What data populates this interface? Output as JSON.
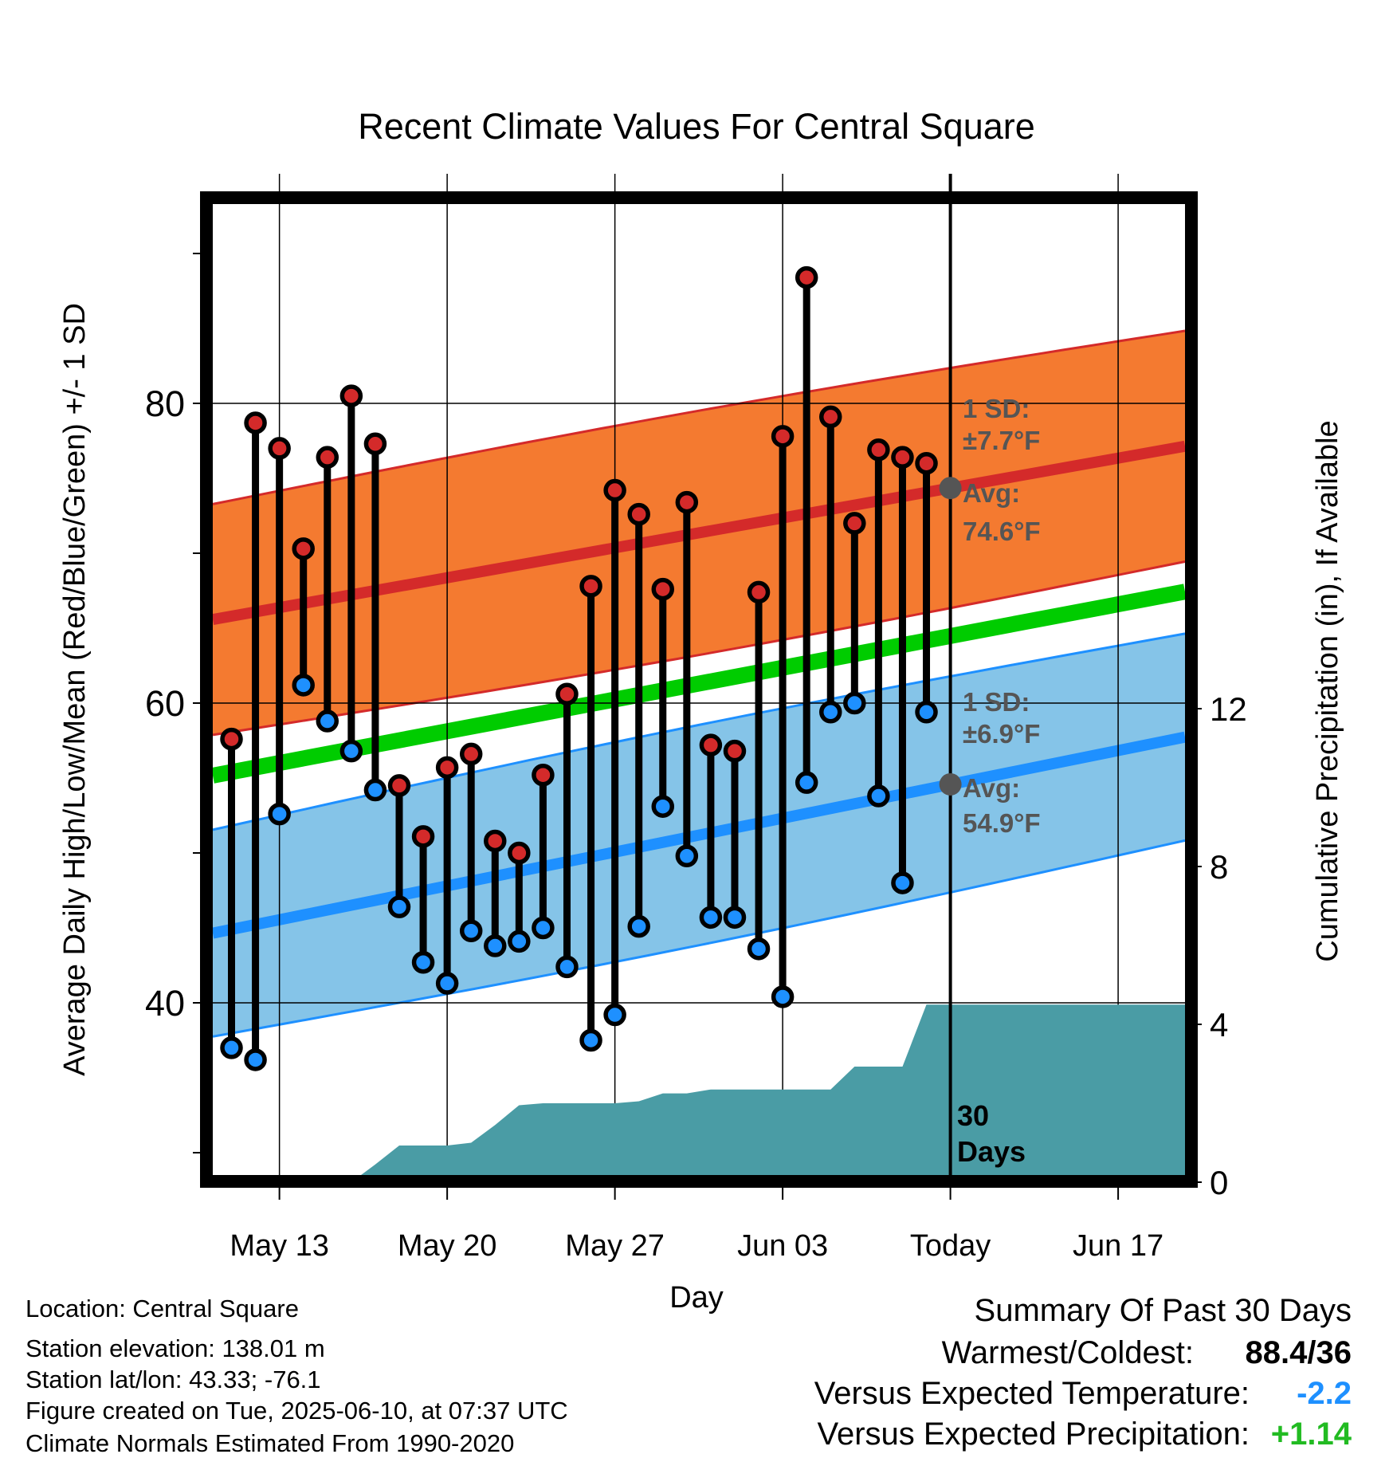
{
  "title": "Recent Climate Values For Central Square",
  "chart_data": {
    "type": "line",
    "title": "Recent Climate Values For Central Square",
    "xlabel": "Day",
    "ylabel": "Average Daily High/Low/Mean (Red/Blue/Green) +/- 1 SD",
    "y2label": "Cumulative Precipitation (in), If Available",
    "ylim": [
      30,
      95
    ],
    "y2lim": [
      0,
      20
    ],
    "y_ticks": [
      "40",
      "60",
      "80"
    ],
    "y2_ticks": [
      "0",
      "4",
      "8",
      "12"
    ],
    "x_tick_labels": [
      "May 13",
      "May 20",
      "May 27",
      "Jun 03",
      "Today",
      "Jun 17"
    ],
    "grid": true,
    "days": [
      "May 11",
      "May 12",
      "May 13",
      "May 14",
      "May 15",
      "May 16",
      "May 17",
      "May 18",
      "May 19",
      "May 20",
      "May 21",
      "May 22",
      "May 23",
      "May 24",
      "May 25",
      "May 26",
      "May 27",
      "May 28",
      "May 29",
      "May 30",
      "May 31",
      "Jun 01",
      "Jun 02",
      "Jun 03",
      "Jun 04",
      "Jun 05",
      "Jun 06",
      "Jun 07",
      "Jun 08",
      "Jun 09"
    ],
    "highs": [
      57.6,
      78.7,
      77.0,
      70.3,
      76.4,
      80.5,
      77.3,
      54.5,
      51.1,
      55.7,
      56.6,
      50.8,
      50.0,
      55.2,
      60.6,
      67.8,
      74.2,
      72.6,
      67.6,
      73.4,
      57.2,
      56.8,
      67.4,
      77.8,
      88.4,
      79.1,
      72.0,
      76.9,
      76.4,
      76.0
    ],
    "lows": [
      37.0,
      36.2,
      52.6,
      61.2,
      58.8,
      56.8,
      54.2,
      46.4,
      42.7,
      41.3,
      44.8,
      43.8,
      44.1,
      45.0,
      42.4,
      37.5,
      39.2,
      45.1,
      53.1,
      49.8,
      45.7,
      45.7,
      43.6,
      40.4,
      54.7,
      59.4,
      60.0,
      53.8,
      48.0,
      59.4
    ],
    "normal_high": {
      "name": "Avg: 74.6°F",
      "sd": 7.7,
      "start": 65.8,
      "end": 77.2
    },
    "normal_low": {
      "name": "Avg: 54.9°F",
      "sd": 6.9,
      "start": 44.9,
      "end": 57.8
    },
    "normal_mean": {
      "start": 55.4,
      "end": 67.5
    },
    "precip_days": [
      "May 16",
      "May 17",
      "May 18",
      "May 19",
      "May 20",
      "May 21",
      "May 22",
      "May 23",
      "May 24",
      "May 25",
      "May 26",
      "May 27",
      "May 28",
      "May 29",
      "May 30",
      "May 31",
      "Jun 01",
      "Jun 02",
      "Jun 03",
      "Jun 04",
      "Jun 05",
      "Jun 06",
      "Jun 07",
      "Jun 08",
      "Jun 09",
      "Jun 10",
      "Jun 20"
    ],
    "precip_cumulative": [
      0.0,
      0.45,
      0.93,
      0.93,
      0.93,
      1.0,
      1.45,
      1.95,
      2.0,
      2.0,
      2.0,
      2.0,
      2.05,
      2.25,
      2.25,
      2.35,
      2.35,
      2.35,
      2.35,
      2.35,
      2.35,
      2.93,
      2.93,
      2.93,
      4.5,
      4.5,
      4.5
    ],
    "annotations": {
      "high_sd_label": "1 SD:",
      "high_sd_value": "±7.7°F",
      "high_avg_label": "Avg:",
      "high_avg_value": "74.6°F",
      "low_sd_label": "1 SD:",
      "low_sd_value": "±6.9°F",
      "low_avg_label": "Avg:",
      "low_avg_value": "54.9°F",
      "window_line1": "30",
      "window_line2": "Days"
    },
    "colors": {
      "high": "#d42a2a",
      "low": "#1e90ff",
      "mean": "#00cc00",
      "high_band": "#f47a30",
      "low_band": "#85c4e8",
      "precip": "#4a9ca5"
    }
  },
  "info": {
    "location": "Location: Central Square",
    "elevation": "Station elevation: 138.01 m",
    "latlon": "Station lat/lon: 43.33; -76.1",
    "created": "Figure created on Tue, 2025-06-10, at 07:37 UTC",
    "normals": "Climate Normals Estimated From 1990-2020"
  },
  "summary": {
    "heading": "Summary Of Past 30 Days",
    "warm_cold_label": "Warmest/Coldest:",
    "warm_cold_value": "88.4/36",
    "temp_label": "Versus Expected Temperature:",
    "temp_value": "-2.2",
    "temp_color": "#1e90ff",
    "precip_label": "Versus Expected Precipitation:",
    "precip_value": "+1.14",
    "precip_color": "#22bb22"
  }
}
